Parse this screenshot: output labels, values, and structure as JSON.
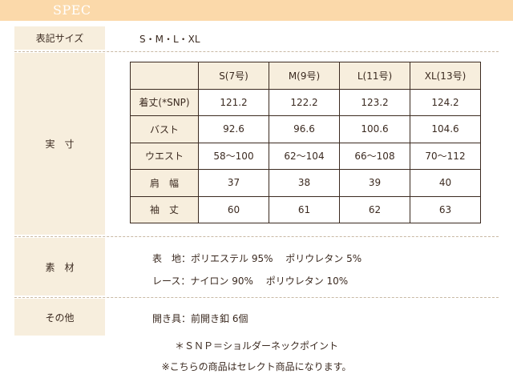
{
  "header": {
    "title": "SPEC"
  },
  "spec": {
    "size_label": {
      "label": "表記サイズ",
      "value": "S・M・L・XL"
    },
    "dimensions_label": "実　寸",
    "table": {
      "columns": [
        "",
        "S(7号)",
        "M(9号)",
        "L(11号)",
        "XL(13号)"
      ],
      "rows": [
        {
          "label": "着丈(*SNP)",
          "values": [
            "121.2",
            "122.2",
            "123.2",
            "124.2"
          ]
        },
        {
          "label": "バスト",
          "values": [
            "92.6",
            "96.6",
            "100.6",
            "104.6"
          ]
        },
        {
          "label": "ウエスト",
          "values": [
            "58～100",
            "62～104",
            "66～108",
            "70～112"
          ]
        },
        {
          "label": "肩　幅",
          "values": [
            "37",
            "38",
            "39",
            "40"
          ]
        },
        {
          "label": "袖　丈",
          "values": [
            "60",
            "61",
            "62",
            "63"
          ]
        }
      ]
    },
    "material": {
      "label": "素　材",
      "lines": [
        "表　地：ポリエステル 95%　 ポリウレタン 5%",
        "レース：ナイロン 90%　 ポリウレタン 10%"
      ]
    },
    "other": {
      "label": "その他",
      "value": "開き具：前開き釦 6個"
    }
  },
  "footer": {
    "note1": "＊ＳＮＰ＝ショルダーネックポイント",
    "note2": "※こちらの商品はセレクト商品になります。"
  }
}
